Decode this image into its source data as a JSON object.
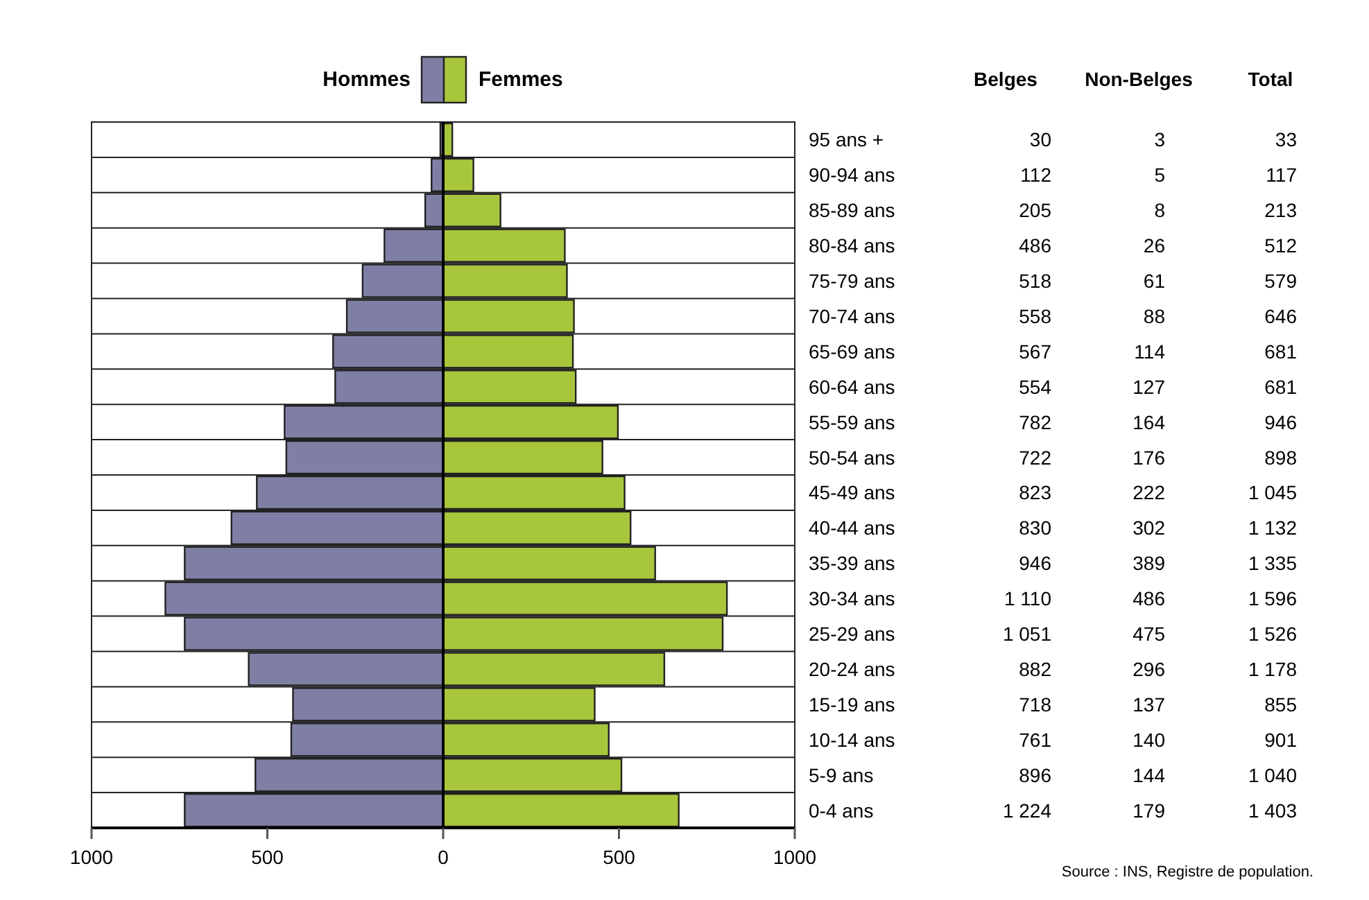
{
  "chart_data": [
    {
      "type": "bar",
      "orientation": "horizontal",
      "categories": [
        null,
        null,
        null,
        null,
        null,
        null,
        null,
        null,
        null,
        null,
        null,
        null,
        null,
        null,
        null,
        null,
        null,
        null,
        null,
        null
      ],
      "series": [
        {
          "name": "Hommes",
          "color": "#7f7fa6",
          "values": [
            -8,
            -33,
            -51,
            -167,
            -229,
            -274,
            -313,
            -307,
            -451,
            -446,
            -530,
            -602,
            -735,
            -790,
            -735,
            -553,
            -427,
            -432,
            -534,
            -735
          ]
        },
        {
          "name": "Femmes",
          "color": "#a8c63c",
          "values": [
            26,
            86,
            163,
            346,
            352,
            372,
            369,
            377,
            497,
            453,
            516,
            533,
            603,
            807,
            795,
            629,
            431,
            471,
            507,
            670
          ]
        }
      ],
      "stacked": true,
      "xlim": [
        -1000,
        1000
      ],
      "xticks": [
        {
          "value": -1000,
          "label": "1000"
        },
        {
          "value": -500,
          "label": "500"
        },
        0,
        500,
        1000
      ],
      "legend": "top",
      "grid": false,
      "annotations": [
        "Source : INS, Registre de population."
      ]
    },
    {
      "type": "heatmap",
      "data_labels": true,
      "categories": [
        "Belges",
        "Non-Belges",
        "Total"
      ],
      "y_categories": [
        "95 ans +",
        "90-94 ans",
        "85-89 ans",
        "80-84 ans",
        "75-79 ans",
        "70-74 ans",
        "65-69 ans",
        "60-64 ans",
        "55-59 ans",
        "50-54 ans",
        "45-49 ans",
        "40-44 ans",
        "35-39 ans",
        "30-34 ans",
        "25-29 ans",
        "20-24 ans",
        "15-19 ans",
        "10-14 ans",
        "5-9 ans",
        "0-4 ans"
      ],
      "cells": [
        [
          30,
          3,
          33
        ],
        [
          112,
          5,
          117
        ],
        [
          205,
          8,
          213
        ],
        [
          486,
          26,
          512
        ],
        [
          518,
          61,
          579
        ],
        [
          558,
          88,
          646
        ],
        [
          567,
          114,
          681
        ],
        [
          554,
          127,
          681
        ],
        [
          782,
          164,
          946
        ],
        [
          722,
          176,
          898
        ],
        [
          823,
          222,
          1045
        ],
        [
          830,
          302,
          1132
        ],
        [
          946,
          389,
          1335
        ],
        [
          1110,
          486,
          1596
        ],
        [
          1051,
          475,
          1526
        ],
        [
          882,
          296,
          1178
        ],
        [
          718,
          137,
          855
        ],
        [
          761,
          140,
          901
        ],
        [
          896,
          144,
          1040
        ],
        [
          1224,
          179,
          1403
        ]
      ]
    }
  ]
}
